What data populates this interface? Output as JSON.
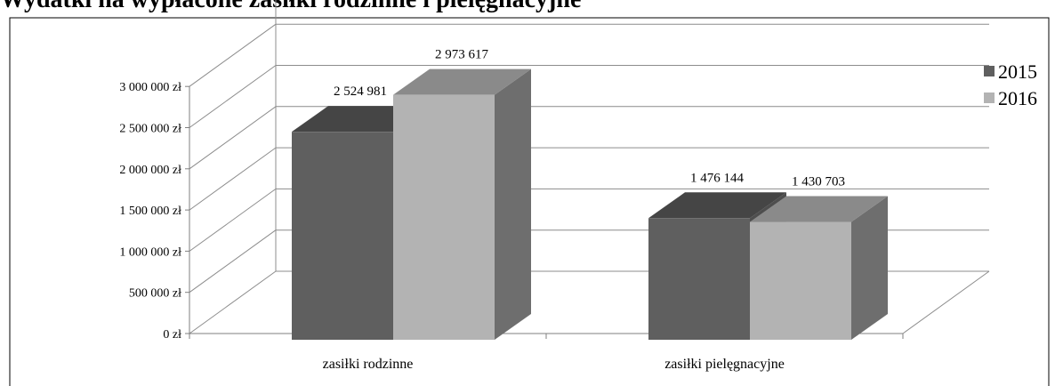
{
  "chart_data": {
    "type": "bar",
    "title": "Wydatki na wypłacone zasiłki rodzinne i pielęgnacyjne",
    "categories": [
      "zasiłki rodzinne",
      "zasiłki pielęgnacyjne"
    ],
    "series": [
      {
        "name": "2015",
        "values": [
          2524981,
          1476144
        ],
        "color": "#5f5f5f",
        "top_color": "#454545",
        "side_color": "#4e4e4e"
      },
      {
        "name": "2016",
        "values": [
          2973617,
          1430703
        ],
        "color": "#b3b3b3",
        "top_color": "#8a8a8a",
        "side_color": "#6e6e6e"
      }
    ],
    "data_labels": [
      [
        "2 524 981",
        "1 476 144"
      ],
      [
        "2 973 617",
        "1 430 703"
      ]
    ],
    "y_ticks": [
      "0 zł",
      "500 000 zł",
      "1 000 000 zł",
      "1 500 000 zł",
      "2 000 000 zł",
      "2 500 000 zł",
      "3 000 000 zł"
    ],
    "y_tick_values": [
      0,
      500000,
      1000000,
      1500000,
      2000000,
      2500000,
      3000000
    ],
    "ylim": [
      0,
      3500000
    ],
    "xlabel": "",
    "ylabel": "",
    "grid": true,
    "legend_position": "right",
    "chart_style": "3d-bar"
  }
}
